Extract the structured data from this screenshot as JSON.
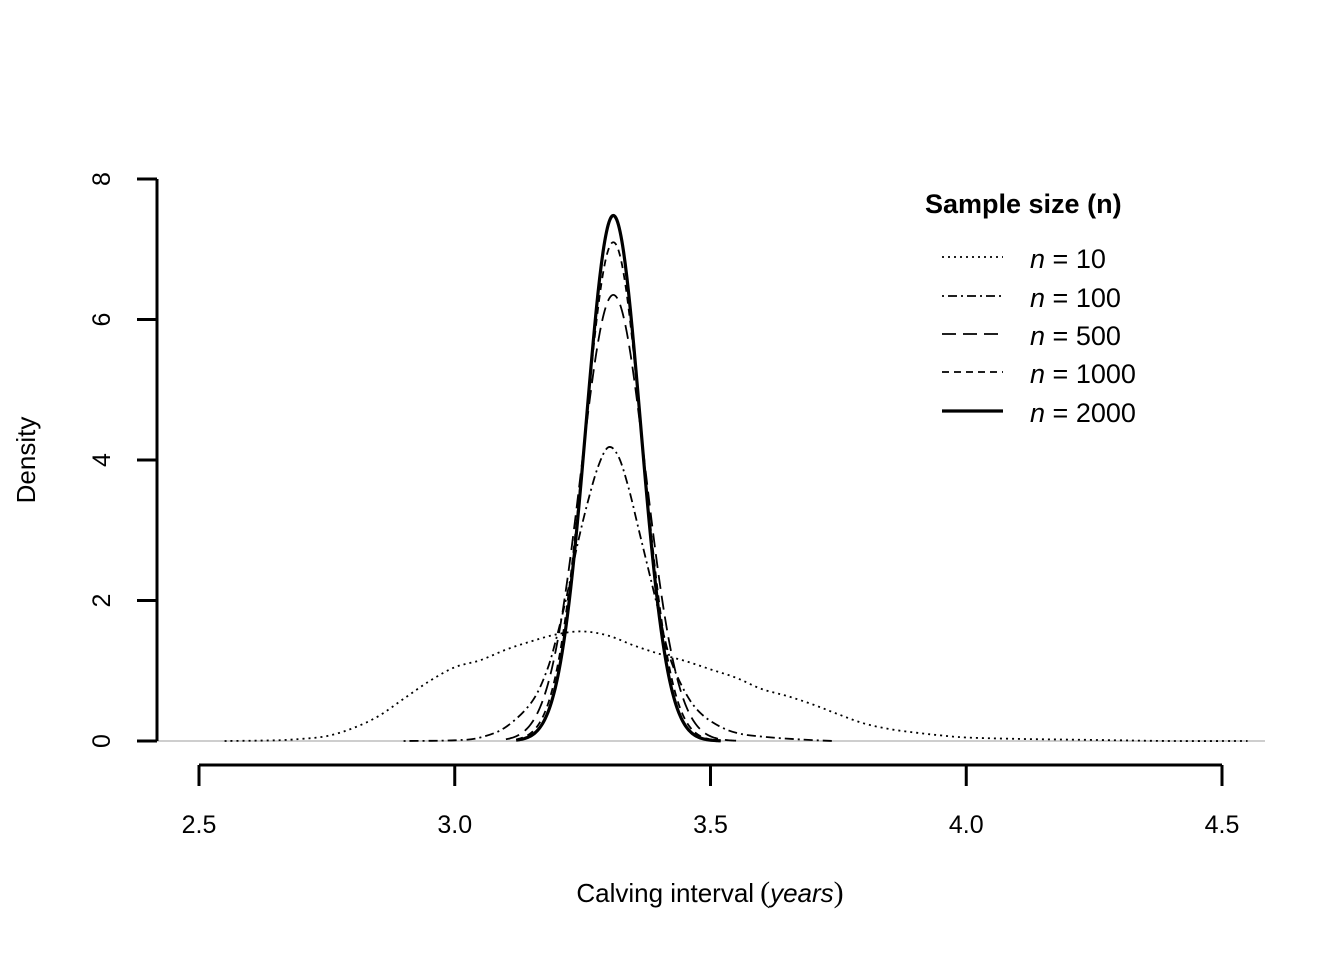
{
  "chart_data": {
    "type": "line",
    "title": "",
    "xlabel": "Calving interval",
    "xlabel_unit": "years",
    "ylabel": "Density",
    "xlim": [
      2.5,
      4.5
    ],
    "ylim": [
      0,
      8
    ],
    "x_ticks": [
      "2.5",
      "3.0",
      "3.5",
      "4.0",
      "4.5"
    ],
    "y_ticks": [
      "0",
      "2",
      "4",
      "6",
      "8"
    ],
    "grid": false,
    "legend": {
      "title": "Sample size (n)",
      "placement": "top-right",
      "entries": [
        {
          "var": "n",
          "eq": " = ",
          "value": "10"
        },
        {
          "var": "n",
          "eq": " = ",
          "value": "100"
        },
        {
          "var": "n",
          "eq": " = ",
          "value": "500"
        },
        {
          "var": "n",
          "eq": " = ",
          "value": "1000"
        },
        {
          "var": "n",
          "eq": " = ",
          "value": "2000"
        }
      ]
    },
    "series": [
      {
        "label": "n = 10",
        "style": "dotted",
        "points": [
          [
            2.55,
            0.0
          ],
          [
            2.65,
            0.01
          ],
          [
            2.7,
            0.03
          ],
          [
            2.75,
            0.07
          ],
          [
            2.8,
            0.18
          ],
          [
            2.85,
            0.35
          ],
          [
            2.9,
            0.6
          ],
          [
            2.95,
            0.85
          ],
          [
            3.0,
            1.05
          ],
          [
            3.05,
            1.15
          ],
          [
            3.1,
            1.3
          ],
          [
            3.15,
            1.42
          ],
          [
            3.2,
            1.52
          ],
          [
            3.25,
            1.56
          ],
          [
            3.3,
            1.5
          ],
          [
            3.35,
            1.36
          ],
          [
            3.4,
            1.24
          ],
          [
            3.45,
            1.14
          ],
          [
            3.5,
            1.02
          ],
          [
            3.55,
            0.9
          ],
          [
            3.6,
            0.74
          ],
          [
            3.65,
            0.64
          ],
          [
            3.7,
            0.52
          ],
          [
            3.75,
            0.38
          ],
          [
            3.8,
            0.25
          ],
          [
            3.85,
            0.17
          ],
          [
            3.9,
            0.12
          ],
          [
            3.95,
            0.08
          ],
          [
            4.0,
            0.05
          ],
          [
            4.1,
            0.03
          ],
          [
            4.2,
            0.02
          ],
          [
            4.3,
            0.01
          ],
          [
            4.4,
            0.0
          ],
          [
            4.55,
            0.0
          ]
        ]
      },
      {
        "label": "n = 100",
        "style": "dotdash",
        "points": [
          [
            2.9,
            0.0
          ],
          [
            3.0,
            0.01
          ],
          [
            3.05,
            0.05
          ],
          [
            3.1,
            0.2
          ],
          [
            3.15,
            0.55
          ],
          [
            3.18,
            1.0
          ],
          [
            3.2,
            1.5
          ],
          [
            3.22,
            2.1
          ],
          [
            3.24,
            2.8
          ],
          [
            3.26,
            3.4
          ],
          [
            3.28,
            3.9
          ],
          [
            3.3,
            4.18
          ],
          [
            3.32,
            4.05
          ],
          [
            3.34,
            3.6
          ],
          [
            3.36,
            3.0
          ],
          [
            3.38,
            2.4
          ],
          [
            3.4,
            1.8
          ],
          [
            3.42,
            1.2
          ],
          [
            3.45,
            0.7
          ],
          [
            3.48,
            0.4
          ],
          [
            3.52,
            0.2
          ],
          [
            3.56,
            0.1
          ],
          [
            3.62,
            0.05
          ],
          [
            3.68,
            0.02
          ],
          [
            3.74,
            0.0
          ]
        ]
      },
      {
        "label": "n = 500",
        "style": "longdash",
        "gaussian": {
          "mu": 3.31,
          "sigma": 0.063,
          "peak": 6.35
        },
        "range": [
          3.1,
          3.55
        ]
      },
      {
        "label": "n = 1000",
        "style": "dashed",
        "gaussian": {
          "mu": 3.31,
          "sigma": 0.056,
          "peak": 7.1
        },
        "range": [
          3.12,
          3.52
        ]
      },
      {
        "label": "n = 2000",
        "style": "solid",
        "gaussian": {
          "mu": 3.31,
          "sigma": 0.053,
          "peak": 7.48
        },
        "range": [
          3.12,
          3.52
        ]
      }
    ]
  }
}
